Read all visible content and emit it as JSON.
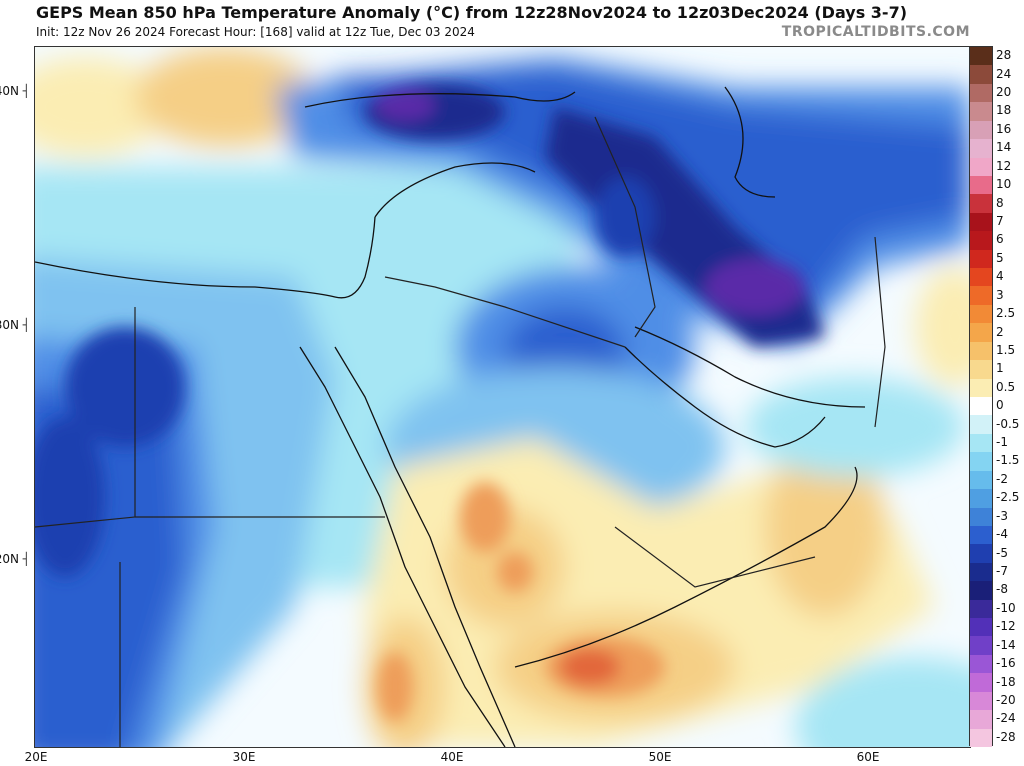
{
  "header": {
    "title": "GEPS Mean 850 hPa Temperature Anomaly (°C) from 12z28Nov2024 to 12z03Dec2024 (Days 3-7)",
    "subtitle": "Init: 12z Nov 26 2024   Forecast Hour: [168]   valid at 12z Tue, Dec 03 2024",
    "brand": "TROPICALTIDBITS.COM"
  },
  "map": {
    "lon_range": [
      20,
      65
    ],
    "lat_range": [
      12,
      42
    ],
    "lat_labels": [
      "40N",
      "30N",
      "20N"
    ],
    "lon_labels": [
      "20E",
      "30E",
      "40E",
      "50E",
      "60E"
    ],
    "colors": {
      "deep_purple": "#5a2ca8",
      "dark_blue": "#1f2f9a",
      "blue": "#2c5fcf",
      "mid_blue": "#4f8ee6",
      "light_blue": "#7fc2f0",
      "cyan": "#a6e6f4",
      "pale": "#f4fbff",
      "pale_yellow": "#fbedb3",
      "tan": "#f5cf86",
      "orange": "#ee9d5a",
      "deep_orange": "#e2663a"
    }
  },
  "colorbar": {
    "labels": [
      "28",
      "24",
      "20",
      "18",
      "16",
      "14",
      "12",
      "10",
      "8",
      "7",
      "6",
      "5",
      "4",
      "3",
      "2.5",
      "2",
      "1.5",
      "1",
      "0.5",
      "0",
      "-0.5",
      "-1",
      "-1.5",
      "-2",
      "-2.5",
      "-3",
      "-4",
      "-5",
      "-7",
      "-8",
      "-10",
      "-12",
      "-14",
      "-16",
      "-18",
      "-20",
      "-24",
      "-28"
    ],
    "colors": [
      "#5a2e1a",
      "#8c4a3a",
      "#b06a64",
      "#c98a8e",
      "#d8a0b6",
      "#e6b2cf",
      "#f0a7c8",
      "#e86b8a",
      "#c9323b",
      "#a8121b",
      "#b8181c",
      "#d0281e",
      "#e4461f",
      "#ee6a28",
      "#f28a36",
      "#f4a64a",
      "#f6c16a",
      "#f8d98e",
      "#fbedb3",
      "#ffffff",
      "#d2f2f8",
      "#a6e6f4",
      "#84d4f2",
      "#66bcec",
      "#4f9fe2",
      "#3e82d8",
      "#2c5fcf",
      "#1f3fb0",
      "#1a2c8e",
      "#1a1f78",
      "#3a2a9a",
      "#5230b8",
      "#7040c8",
      "#9a56d6",
      "#c06ad8",
      "#d888d8",
      "#e8a8d8",
      "#f4c6e0"
    ]
  }
}
